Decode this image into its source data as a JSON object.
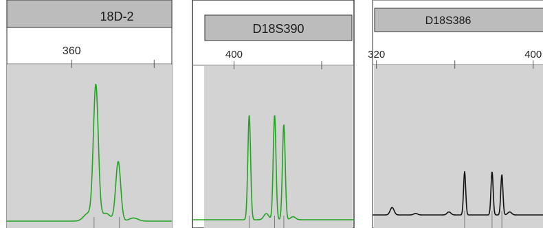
{
  "chart_data": [
    {
      "type": "line",
      "marker": "18D-2",
      "xlim": [
        349,
        377
      ],
      "x_ticks": [
        360
      ],
      "x_ticks_unlabeled": [
        374
      ],
      "trace_color": "#22a322",
      "peaks": [
        {
          "x": 364.1,
          "height": 0.86
        },
        {
          "x": 367.9,
          "height": 0.38
        }
      ],
      "minor_peaks": [
        {
          "x": 362.8,
          "height": 0.05
        },
        {
          "x": 365.8,
          "height": 0.05
        },
        {
          "x": 370.5,
          "height": 0.02
        }
      ],
      "allele_calls": [
        363.8,
        368.1
      ]
    },
    {
      "type": "line",
      "marker": "D18S390",
      "xlim": [
        391,
        426
      ],
      "x_ticks": [
        400
      ],
      "x_ticks_unlabeled": [
        419
      ],
      "trace_color": "#22a322",
      "peaks": [
        {
          "x": 403.3,
          "height": 0.68
        },
        {
          "x": 408.8,
          "height": 0.68
        },
        {
          "x": 410.8,
          "height": 0.62
        }
      ],
      "minor_peaks": [
        {
          "x": 407.0,
          "height": 0.04
        },
        {
          "x": 412.8,
          "height": 0.02
        }
      ],
      "allele_calls": [
        403.3,
        408.8,
        410.8
      ]
    },
    {
      "type": "line",
      "marker": "D18S386",
      "xlim": [
        318,
        405
      ],
      "x_ticks": [
        320,
        400
      ],
      "x_ticks_unlabeled": [
        360
      ],
      "trace_color": "#111111",
      "peaks": [
        {
          "x": 365.0,
          "height": 0.29
        },
        {
          "x": 379.0,
          "height": 0.29
        },
        {
          "x": 384.0,
          "height": 0.27
        }
      ],
      "minor_peaks": [
        {
          "x": 328.0,
          "height": 0.05
        },
        {
          "x": 340.0,
          "height": 0.01
        },
        {
          "x": 357.0,
          "height": 0.02
        },
        {
          "x": 388.0,
          "height": 0.02
        }
      ],
      "allele_calls": [
        365.0,
        379.0,
        384.0
      ]
    }
  ]
}
